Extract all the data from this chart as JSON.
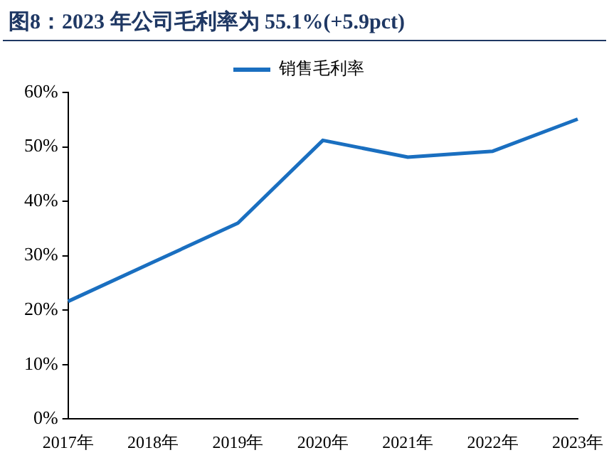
{
  "chart_data": {
    "type": "line",
    "title": "图8：2023 年公司毛利率为 55.1%(+5.9pct)",
    "categories": [
      "2017年",
      "2018年",
      "2019年",
      "2020年",
      "2021年",
      "2022年",
      "2023年"
    ],
    "series": [
      {
        "name": "销售毛利率",
        "color": "#1a6fc0",
        "values": [
          21.6,
          28.8,
          36.0,
          51.2,
          48.1,
          49.2,
          55.1
        ]
      }
    ],
    "ylim": [
      0,
      60
    ],
    "yticks": [
      {
        "value": 0,
        "label": "0%"
      },
      {
        "value": 10,
        "label": "10%"
      },
      {
        "value": 20,
        "label": "20%"
      },
      {
        "value": 30,
        "label": "30%"
      },
      {
        "value": 40,
        "label": "40%"
      },
      {
        "value": 50,
        "label": "50%"
      },
      {
        "value": 60,
        "label": "60%"
      }
    ],
    "legend": "top",
    "grid": false,
    "marker": "none",
    "line_style": "solid"
  }
}
